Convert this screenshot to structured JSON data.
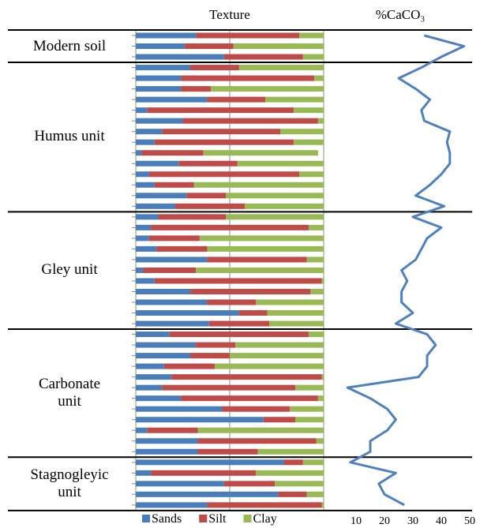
{
  "chart_data": [
    {
      "type": "bar",
      "stacked": true,
      "orientation": "horizontal",
      "title": "Texture",
      "xlim": [
        0,
        100
      ],
      "groups": [
        "Modern soil",
        "Humus unit",
        "Gley unit",
        "Carbonate\nunit",
        "Stagnogleyic\nunit"
      ],
      "series": [
        {
          "name": "Sands",
          "color": "#4a7ebb",
          "values": [
            [
              32,
              26,
              47
            ],
            [
              29,
              24,
              24,
              38,
              6,
              25,
              14,
              10,
              3,
              23,
              7,
              10,
              27,
              21
            ],
            [
              12,
              8,
              7,
              11,
              38,
              4,
              10,
              29,
              38,
              55,
              39
            ],
            [
              18,
              32,
              29,
              15,
              19,
              14,
              24,
              46,
              68,
              6,
              33,
              33
            ],
            [
              79,
              8,
              47,
              76,
              38
            ]
          ]
        },
        {
          "name": "Silt",
          "color": "#be4b48",
          "values": [
            [
              55,
              26,
              42
            ],
            [
              26,
              71,
              16,
              31,
              78,
              72,
              63,
              74,
              33,
              31,
              80,
              21,
              21,
              37
            ],
            [
              36,
              84,
              27,
              27,
              53,
              28,
              89,
              64,
              26,
              15,
              32
            ],
            [
              74,
              21,
              21,
              27,
              80,
              71,
              73,
              36,
              17,
              27,
              63,
              32
            ],
            [
              10,
              56,
              27,
              15,
              61
            ]
          ]
        },
        {
          "name": "Clay",
          "color": "#98b954",
          "values": [
            [
              13,
              48,
              11
            ],
            [
              45,
              5,
              60,
              31,
              16,
              3,
              23,
              16,
              61,
              46,
              13,
              69,
              52,
              42
            ],
            [
              52,
              8,
              66,
              62,
              9,
              68,
              1,
              7,
              36,
              30,
              29
            ],
            [
              8,
              47,
              50,
              58,
              1,
              15,
              3,
              18,
              15,
              67,
              4,
              35
            ],
            [
              11,
              36,
              26,
              9,
              1
            ]
          ]
        }
      ]
    },
    {
      "type": "line",
      "title": "%CaCO₃",
      "xlim": [
        0,
        50
      ],
      "xticks": [
        10,
        20,
        30,
        40,
        50
      ],
      "color": "#4f81bd",
      "values": [
        [
          34,
          48,
          40
        ],
        [
          33,
          25,
          31,
          36,
          33,
          34,
          43,
          42,
          43,
          43,
          40,
          36,
          31,
          41
        ],
        [
          30,
          40,
          35,
          33,
          31,
          26,
          28,
          26,
          26,
          30,
          24
        ],
        [
          35,
          38,
          35,
          35,
          32,
          7,
          15,
          21,
          24,
          21,
          15,
          15
        ],
        [
          8,
          24,
          18,
          20,
          27
        ]
      ]
    }
  ]
}
